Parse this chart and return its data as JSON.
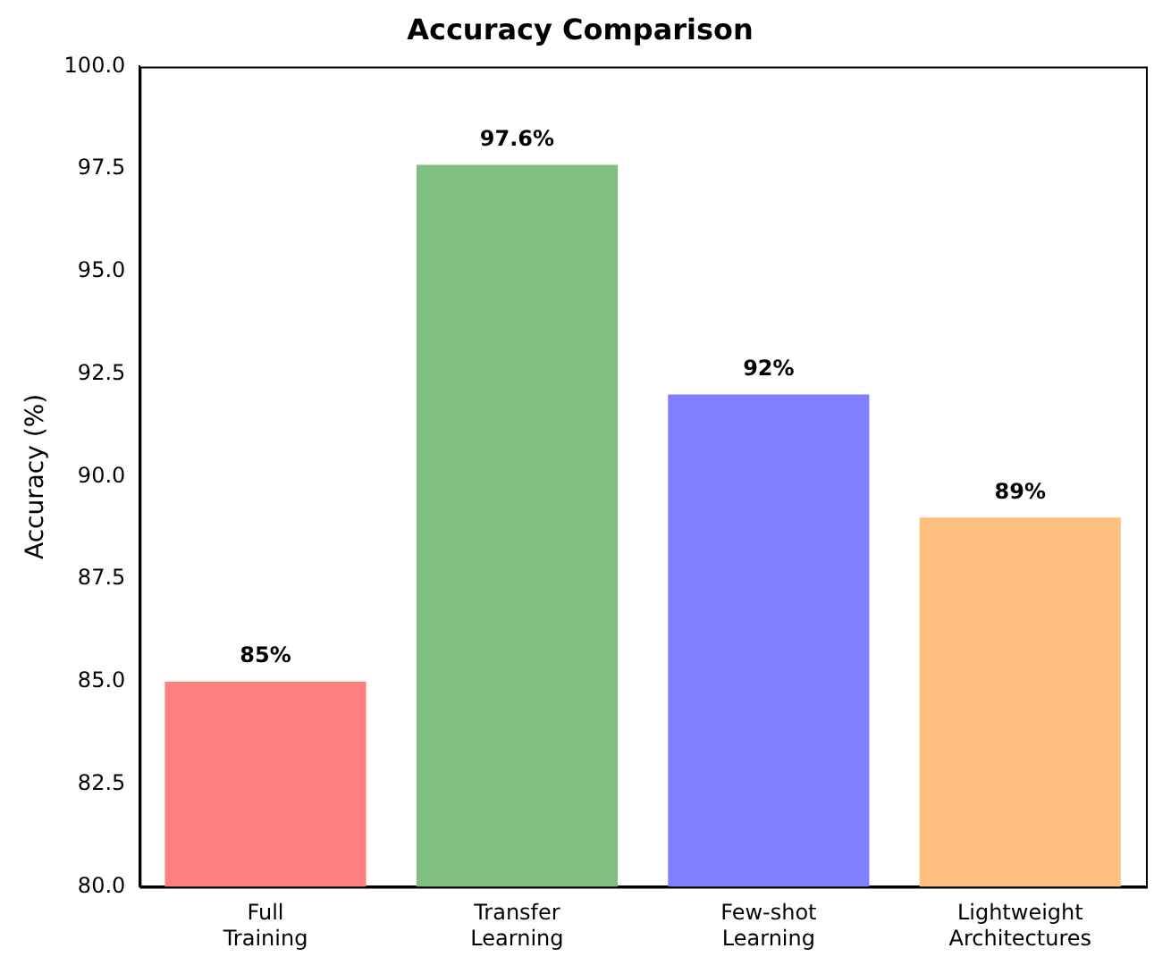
{
  "chart_data": {
    "type": "bar",
    "title": "Accuracy Comparison",
    "ylabel": "Accuracy (%)",
    "categories": [
      "Full Training",
      "Transfer Learning",
      "Few-shot Learning",
      "Lightweight Architectures"
    ],
    "values": [
      85,
      97.6,
      92,
      89
    ],
    "colors": [
      "#ff7f7f",
      "#7fbf7f",
      "#7f7fff",
      "#ffbf7f"
    ],
    "value_labels": [
      "85%",
      "97.6%",
      "92%",
      "89%"
    ],
    "ylim": [
      80,
      100
    ],
    "yticks": [
      {
        "value": 80,
        "label": "80.0"
      },
      {
        "value": 82.5,
        "label": "82.5"
      },
      {
        "value": 85,
        "label": "85.0"
      },
      {
        "value": 87.5,
        "label": "87.5"
      },
      {
        "value": 90,
        "label": "90.0"
      },
      {
        "value": 92.5,
        "label": "92.5"
      },
      {
        "value": 95,
        "label": "95.0"
      },
      {
        "value": 97.5,
        "label": "97.5"
      },
      {
        "value": 100,
        "label": "100.0"
      }
    ],
    "grid": false,
    "legend": false
  }
}
